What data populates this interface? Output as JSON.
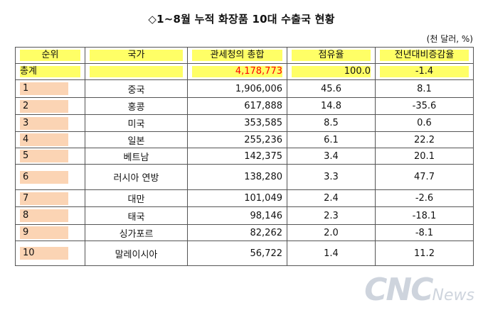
{
  "title": "◇1~8월 누적 화장품 10대 수출국 현황",
  "unit": "(천 달러, %)",
  "headers": [
    "순위",
    "국가",
    "관세청의 총합",
    "점유율",
    "전년대비증감율"
  ],
  "total": {
    "label": "총계",
    "country": "",
    "amount": "4,178,773",
    "share": "100.0",
    "change": "-1.4"
  },
  "rows": [
    {
      "rank": "1",
      "country": "중국",
      "amount": "1,906,006",
      "share": "45.6",
      "change": "8.1"
    },
    {
      "rank": "2",
      "country": "홍콩",
      "amount": "617,888",
      "share": "14.8",
      "change": "-35.6"
    },
    {
      "rank": "3",
      "country": "미국",
      "amount": "353,585",
      "share": "8.5",
      "change": "0.6"
    },
    {
      "rank": "4",
      "country": "일본",
      "amount": "255,236",
      "share": "6.1",
      "change": "22.2"
    },
    {
      "rank": "5",
      "country": "베트남",
      "amount": "142,375",
      "share": "3.4",
      "change": "20.1"
    },
    {
      "rank": "6",
      "country": "러시아 연방",
      "amount": "138,280",
      "share": "3.3",
      "change": "47.7"
    },
    {
      "rank": "7",
      "country": "대만",
      "amount": "101,049",
      "share": "2.4",
      "change": "-2.6"
    },
    {
      "rank": "8",
      "country": "태국",
      "amount": "98,146",
      "share": "2.3",
      "change": "-18.1"
    },
    {
      "rank": "9",
      "country": "싱가포르",
      "amount": "82,262",
      "share": "2.0",
      "change": "-8.1"
    },
    {
      "rank": "10",
      "country": "말레이시아",
      "amount": "56,722",
      "share": "1.4",
      "change": "11.2"
    }
  ],
  "watermark": {
    "big": "CNC",
    "small": "News"
  },
  "colors": {
    "header_highlight": "#ffff66",
    "rank_highlight": "#fbd4b4",
    "total_amount_text": "#ff0000"
  }
}
